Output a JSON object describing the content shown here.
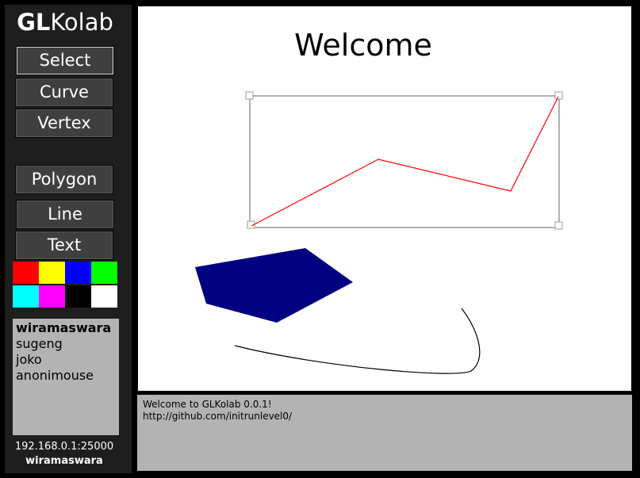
{
  "app": {
    "title_bold": "GL",
    "title_rest": "Kolab"
  },
  "tools": {
    "select": "Select",
    "curve": "Curve",
    "vertex": "Vertex",
    "polygon": "Polygon",
    "line": "Line",
    "text": "Text"
  },
  "palette": [
    "#ff0000",
    "#ffff00",
    "#0000ff",
    "#00ff00",
    "#00ffff",
    "#ff00ff",
    "#000000",
    "#ffffff"
  ],
  "users": [
    "wiramaswara",
    "sugeng",
    "joko",
    "anonimouse"
  ],
  "status": {
    "server": "192.168.0.1:25000",
    "username": "wiramaswara"
  },
  "canvas": {
    "welcome_text": "Welcome",
    "polyline_color": "#ff0000",
    "polygon_fill": "#000080",
    "curve_color": "#000000"
  },
  "console": {
    "lines": [
      "Welcome to GLKolab 0.0.1!",
      "http://github.com/initrunlevel0/"
    ]
  }
}
